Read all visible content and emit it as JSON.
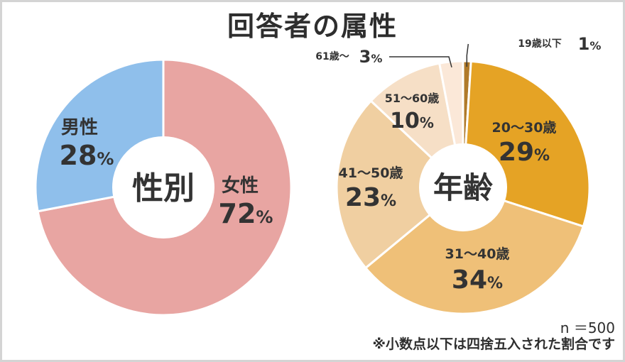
{
  "title": "回答者の属性",
  "footer": {
    "n": "n ＝500",
    "note": "※小数点以下は四捨五入された割合です"
  },
  "chart_data": [
    {
      "type": "pie",
      "center_label": "性別",
      "slices": [
        {
          "label": "女性",
          "value": 72,
          "display": "72",
          "color": "#e8a5a2"
        },
        {
          "label": "男性",
          "value": 28,
          "display": "28",
          "color": "#8fbfeb"
        }
      ]
    },
    {
      "type": "pie",
      "center_label": "年齢",
      "slices": [
        {
          "label": "19歳以下",
          "value": 1,
          "display": "1",
          "color": "#b07a2a"
        },
        {
          "label": "20～30歳",
          "value": 29,
          "display": "29",
          "color": "#e5a325"
        },
        {
          "label": "31～40歳",
          "value": 34,
          "display": "34",
          "color": "#efc078"
        },
        {
          "label": "41～50歳",
          "value": 23,
          "display": "23",
          "color": "#f0cfa1"
        },
        {
          "label": "51～60歳",
          "value": 10,
          "display": "10",
          "color": "#f6dfc6"
        },
        {
          "label": "61歳～",
          "value": 3,
          "display": "3",
          "color": "#fbe8d8"
        }
      ]
    }
  ]
}
